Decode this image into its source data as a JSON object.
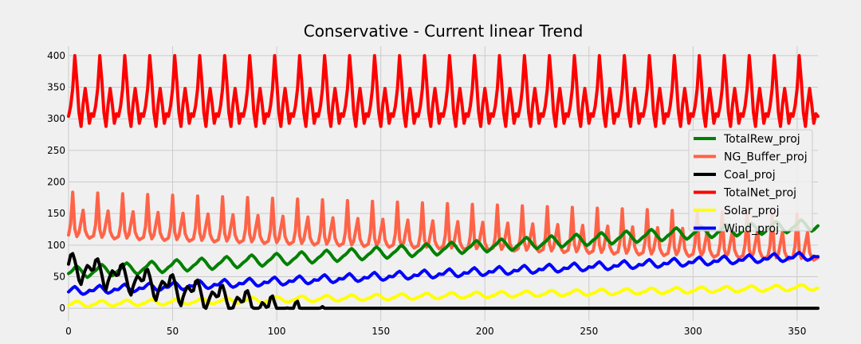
{
  "chart_data": {
    "type": "line",
    "title": "Conservative - Current linear Trend",
    "xlabel": "",
    "ylabel": "",
    "xlim": [
      0,
      360
    ],
    "ylim": [
      -20,
      415
    ],
    "x_ticks": [
      0,
      50,
      100,
      150,
      200,
      250,
      300,
      350
    ],
    "y_ticks": [
      0,
      50,
      100,
      150,
      200,
      250,
      300,
      350,
      400
    ],
    "grid": true,
    "legend_position": "right",
    "x_range": [
      0,
      360
    ],
    "period_months": 12,
    "series": [
      {
        "name": "TotalRew_proj",
        "color": "#008000",
        "trend_start": 55,
        "trend_slope": 0.21,
        "seasonal": [
          0,
          2,
          5,
          9,
          11,
          8,
          4,
          -1,
          -5,
          -8,
          -6,
          -3
        ]
      },
      {
        "name": "NG_Buffer_proj",
        "color": "#ff6347",
        "trend_start": 116,
        "trend_slope": -0.1,
        "seasonal": [
          0,
          18,
          68,
          10,
          -2,
          4,
          22,
          40,
          8,
          0,
          -4,
          -2
        ]
      },
      {
        "name": "Coal_proj",
        "color": "#000000",
        "trend_start": 70,
        "trend_slope": -0.7,
        "seasonal": [
          0,
          15,
          18,
          8,
          -6,
          -22,
          -28,
          -14,
          -4,
          4,
          2,
          -2
        ]
      },
      {
        "name": "TotalNet_proj",
        "color": "#ff0000",
        "trend_start": 318,
        "trend_slope": 0,
        "seasonal": [
          -14,
          2,
          30,
          82,
          42,
          -8,
          -30,
          5,
          30,
          5,
          -25,
          -10
        ]
      },
      {
        "name": "Solar_proj",
        "color": "#ffff00",
        "trend_start": 5,
        "trend_slope": 0.075,
        "seasonal": [
          0,
          1,
          3,
          5,
          6,
          5,
          3,
          0,
          -2,
          -3,
          -3,
          -1
        ]
      },
      {
        "name": "Wind_proj",
        "color": "#0000ff",
        "trend_start": 26,
        "trend_slope": 0.155,
        "seasonal": [
          0,
          3,
          6,
          8,
          5,
          1,
          -3,
          -5,
          -4,
          -2,
          1,
          0
        ]
      }
    ]
  }
}
